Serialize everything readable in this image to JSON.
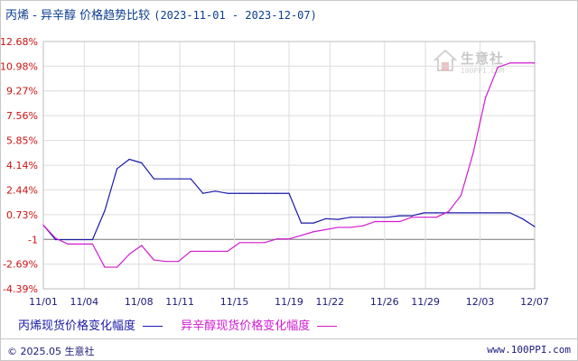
{
  "title": {
    "main": "丙烯 - 异辛醇 价格趋势比较",
    "range": "(2023-11-01 - 2023-12-07)"
  },
  "footer": {
    "copyright": "© 2025.05 生意社",
    "url": "www.100PPI.com"
  },
  "watermark": {
    "brand": "生意社",
    "url": "100PPI.COM"
  },
  "colors": {
    "series1": "#1a1aa8",
    "series2": "#d11ad1",
    "ytick": "#cc1111",
    "xtick": "#1a1a7a",
    "grid": "#dcdcdc",
    "baseline": "#777777"
  },
  "chart_data": {
    "type": "line",
    "title": "丙烯 - 异辛醇 价格趋势比较",
    "xlabel": "",
    "ylabel": "",
    "ylim": [
      -4.39,
      12.68
    ],
    "grid": true,
    "legend_position": "bottom",
    "y_ticks": [
      "12.68%",
      "10.98%",
      "9.27%",
      "7.56%",
      "5.85%",
      "4.14%",
      "2.44%",
      "0.73%",
      "-1",
      "-2.69%",
      "-4.39%"
    ],
    "y_tick_values": [
      12.68,
      10.98,
      9.27,
      7.56,
      5.85,
      4.14,
      2.44,
      0.73,
      -0.98,
      -2.69,
      -4.39
    ],
    "x_ticks": [
      "11/01",
      "11/04",
      "11/08",
      "11/11",
      "11/15",
      "11/19",
      "11/22",
      "11/26",
      "11/29",
      "12/03",
      "12/07"
    ],
    "x_tick_days": [
      0,
      3,
      7,
      10,
      14,
      18,
      21,
      25,
      28,
      32,
      36
    ],
    "x_day_count": 36,
    "series": [
      {
        "name": "丙烯现货价格变化幅度",
        "points": [
          [
            0,
            0.0
          ],
          [
            1,
            -1.0
          ],
          [
            2,
            -1.0
          ],
          [
            3,
            -1.0
          ],
          [
            4,
            -1.0
          ],
          [
            5,
            1.0
          ],
          [
            6,
            3.9
          ],
          [
            7,
            4.55
          ],
          [
            8,
            4.3
          ],
          [
            9,
            3.2
          ],
          [
            10,
            3.2
          ],
          [
            11,
            3.2
          ],
          [
            12,
            3.2
          ],
          [
            13,
            2.2
          ],
          [
            14,
            2.35
          ],
          [
            15,
            2.2
          ],
          [
            16,
            2.2
          ],
          [
            17,
            2.2
          ],
          [
            18,
            2.2
          ],
          [
            19,
            2.2
          ],
          [
            20,
            2.2
          ],
          [
            21,
            0.15
          ],
          [
            22,
            0.15
          ],
          [
            23,
            0.45
          ],
          [
            24,
            0.4
          ],
          [
            25,
            0.55
          ],
          [
            26,
            0.55
          ],
          [
            27,
            0.55
          ],
          [
            28,
            0.55
          ],
          [
            29,
            0.65
          ],
          [
            30,
            0.65
          ],
          [
            31,
            0.85
          ],
          [
            32,
            0.85
          ],
          [
            33,
            0.85
          ],
          [
            34,
            0.85
          ],
          [
            35,
            0.85
          ],
          [
            36,
            0.85
          ],
          [
            37,
            0.85
          ],
          [
            38,
            0.85
          ],
          [
            39,
            0.45
          ],
          [
            40,
            -0.1
          ]
        ]
      },
      {
        "name": "异辛醇现货价格变化幅度",
        "points": [
          [
            0,
            0.0
          ],
          [
            1,
            -0.9
          ],
          [
            2,
            -1.3
          ],
          [
            3,
            -1.3
          ],
          [
            4,
            -1.3
          ],
          [
            5,
            -2.9
          ],
          [
            6,
            -2.9
          ],
          [
            7,
            -2.0
          ],
          [
            8,
            -1.4
          ],
          [
            9,
            -2.4
          ],
          [
            10,
            -2.5
          ],
          [
            11,
            -2.5
          ],
          [
            12,
            -1.8
          ],
          [
            13,
            -1.8
          ],
          [
            14,
            -1.8
          ],
          [
            15,
            -1.8
          ],
          [
            16,
            -1.2
          ],
          [
            17,
            -1.2
          ],
          [
            18,
            -1.2
          ],
          [
            19,
            -0.95
          ],
          [
            20,
            -0.95
          ],
          [
            21,
            -0.7
          ],
          [
            22,
            -0.45
          ],
          [
            23,
            -0.3
          ],
          [
            24,
            -0.15
          ],
          [
            25,
            -0.15
          ],
          [
            26,
            -0.05
          ],
          [
            27,
            0.25
          ],
          [
            28,
            0.25
          ],
          [
            29,
            0.25
          ],
          [
            30,
            0.55
          ],
          [
            31,
            0.55
          ],
          [
            32,
            0.55
          ],
          [
            33,
            0.95
          ],
          [
            34,
            2.05
          ],
          [
            35,
            5.0
          ],
          [
            36,
            8.8
          ],
          [
            37,
            10.9
          ],
          [
            38,
            11.2
          ],
          [
            39,
            11.2
          ],
          [
            40,
            11.2
          ]
        ]
      }
    ]
  }
}
